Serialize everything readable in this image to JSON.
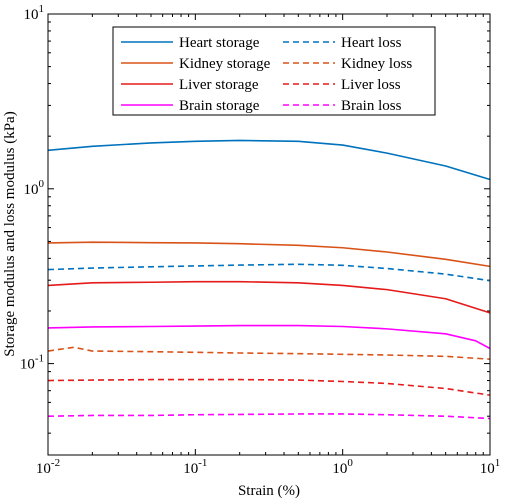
{
  "chart_data": {
    "type": "line",
    "xlabel": "Strain (%)",
    "ylabel": "Storage modulus and loss modulus (kPa)",
    "x_scale": "log",
    "y_scale": "log",
    "xlim": [
      0.01,
      10
    ],
    "ylim": [
      0.03,
      10
    ],
    "x_ticks": [
      {
        "value": 0.01,
        "base": "10",
        "exp": "-2"
      },
      {
        "value": 0.1,
        "base": "10",
        "exp": "-1"
      },
      {
        "value": 1,
        "base": "10",
        "exp": "0"
      },
      {
        "value": 10,
        "base": "10",
        "exp": "1"
      }
    ],
    "y_ticks": [
      {
        "value": 0.1,
        "base": "10",
        "exp": "-1"
      },
      {
        "value": 1,
        "base": "10",
        "exp": "0"
      },
      {
        "value": 10,
        "base": "10",
        "exp": "1"
      }
    ],
    "grid": false,
    "legend_position": "top-center",
    "series": [
      {
        "name": "Heart storage",
        "color": "#0072BD",
        "dash": "solid",
        "x": [
          0.01,
          0.02,
          0.05,
          0.1,
          0.2,
          0.5,
          1,
          2,
          5,
          10
        ],
        "y": [
          1.66,
          1.75,
          1.83,
          1.87,
          1.89,
          1.87,
          1.78,
          1.6,
          1.35,
          1.13
        ]
      },
      {
        "name": "Kidney storage",
        "color": "#D95319",
        "dash": "solid",
        "x": [
          0.01,
          0.02,
          0.05,
          0.1,
          0.2,
          0.5,
          1,
          2,
          5,
          10
        ],
        "y": [
          0.49,
          0.495,
          0.492,
          0.49,
          0.485,
          0.475,
          0.46,
          0.435,
          0.395,
          0.36
        ]
      },
      {
        "name": "Liver storage",
        "color": "#E51A1A",
        "dash": "solid",
        "x": [
          0.01,
          0.02,
          0.05,
          0.1,
          0.2,
          0.5,
          1,
          2,
          5,
          10
        ],
        "y": [
          0.28,
          0.29,
          0.292,
          0.294,
          0.294,
          0.29,
          0.28,
          0.265,
          0.235,
          0.195
        ]
      },
      {
        "name": "Brain storage",
        "color": "#FF00FF",
        "dash": "solid",
        "x": [
          0.01,
          0.02,
          0.05,
          0.1,
          0.2,
          0.5,
          1,
          2,
          5,
          8,
          10
        ],
        "y": [
          0.16,
          0.162,
          0.163,
          0.164,
          0.165,
          0.165,
          0.163,
          0.158,
          0.148,
          0.135,
          0.122
        ]
      },
      {
        "name": "Heart loss",
        "color": "#0072BD",
        "dash": "dashed",
        "x": [
          0.01,
          0.02,
          0.05,
          0.1,
          0.2,
          0.5,
          1,
          2,
          5,
          10
        ],
        "y": [
          0.345,
          0.352,
          0.358,
          0.362,
          0.366,
          0.37,
          0.365,
          0.35,
          0.325,
          0.298
        ]
      },
      {
        "name": "Kidney loss",
        "color": "#D95319",
        "dash": "dashed",
        "x": [
          0.01,
          0.015,
          0.02,
          0.05,
          0.1,
          0.2,
          0.5,
          1,
          2,
          5,
          10
        ],
        "y": [
          0.118,
          0.124,
          0.118,
          0.117,
          0.116,
          0.115,
          0.114,
          0.113,
          0.112,
          0.11,
          0.106
        ]
      },
      {
        "name": "Liver loss",
        "color": "#E51A1A",
        "dash": "dashed",
        "x": [
          0.01,
          0.02,
          0.05,
          0.1,
          0.2,
          0.5,
          1,
          2,
          5,
          10
        ],
        "y": [
          0.08,
          0.0805,
          0.081,
          0.081,
          0.081,
          0.0805,
          0.079,
          0.077,
          0.072,
          0.066
        ]
      },
      {
        "name": "Brain loss",
        "color": "#FF00FF",
        "dash": "dashed",
        "x": [
          0.01,
          0.02,
          0.05,
          0.1,
          0.2,
          0.5,
          1,
          2,
          5,
          10
        ],
        "y": [
          0.05,
          0.0505,
          0.0505,
          0.051,
          0.0512,
          0.0515,
          0.0515,
          0.051,
          0.05,
          0.0485
        ]
      }
    ],
    "legend_order": [
      0,
      4,
      1,
      5,
      2,
      6,
      3,
      7
    ]
  }
}
